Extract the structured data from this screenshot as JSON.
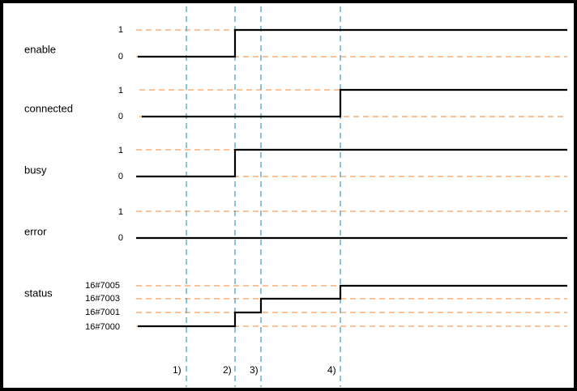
{
  "signals": [
    {
      "name": "enable",
      "levels": [
        "1",
        "0"
      ]
    },
    {
      "name": "connected",
      "levels": [
        "1",
        "0"
      ]
    },
    {
      "name": "busy",
      "levels": [
        "1",
        "0"
      ]
    },
    {
      "name": "error",
      "levels": [
        "1",
        "0"
      ]
    },
    {
      "name": "status",
      "levels": [
        "16#7005",
        "16#7003",
        "16#7001",
        "16#7000"
      ]
    }
  ],
  "markers": [
    "1)",
    "2)",
    "3)",
    "4)"
  ]
}
